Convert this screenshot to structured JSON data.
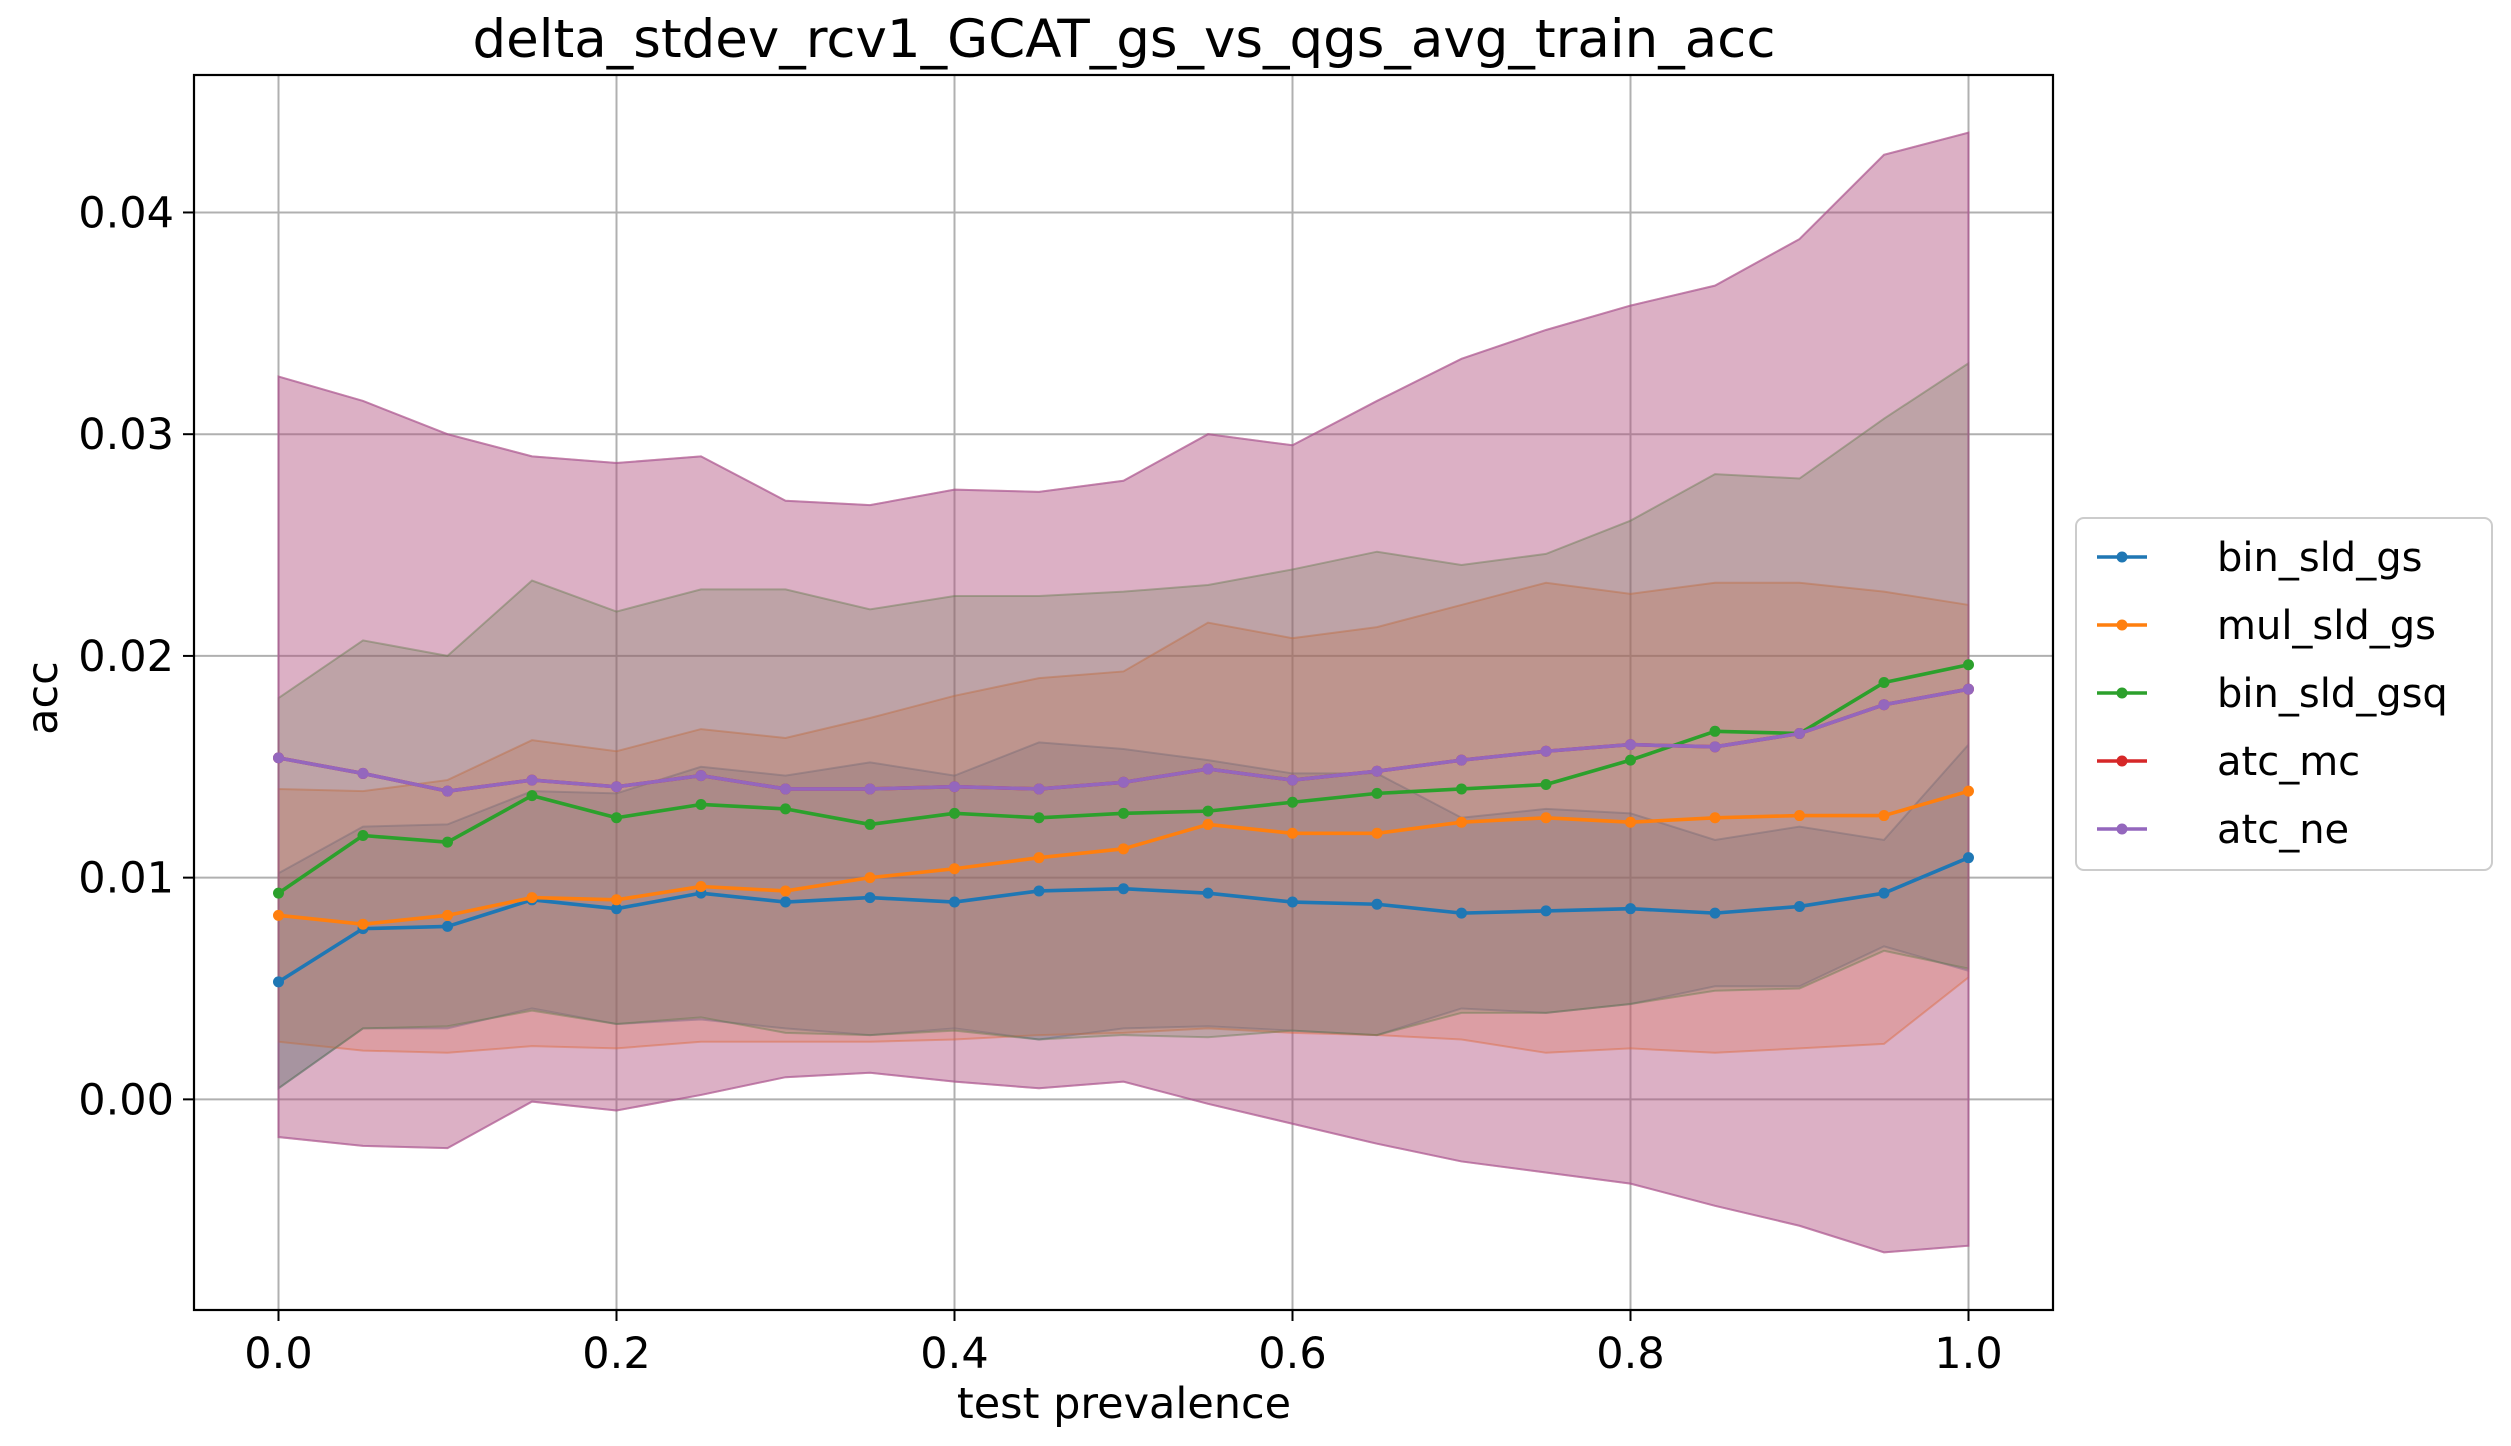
{
  "chart_data": {
    "type": "line",
    "title": "delta_stdev_rcv1_GCAT_gs_vs_qgs_avg_train_acc",
    "xlabel": "test prevalence",
    "ylabel": "acc",
    "xlim": [
      -0.05,
      1.05
    ],
    "ylim": [
      -0.0095,
      0.0462
    ],
    "x_ticks": [
      0.0,
      0.2,
      0.4,
      0.6,
      0.8,
      1.0
    ],
    "x_tick_labels": [
      "0.0",
      "0.2",
      "0.4",
      "0.6",
      "0.8",
      "1.0"
    ],
    "y_ticks": [
      0.0,
      0.01,
      0.02,
      0.03,
      0.04
    ],
    "y_tick_labels": [
      "0.00",
      "0.01",
      "0.02",
      "0.03",
      "0.04"
    ],
    "grid": true,
    "legend_position": "right",
    "x": [
      0.0,
      0.05,
      0.1,
      0.15,
      0.2,
      0.25,
      0.3,
      0.35,
      0.4,
      0.45,
      0.5,
      0.55,
      0.6,
      0.65,
      0.7,
      0.75,
      0.8,
      0.85,
      0.9,
      0.95,
      1.0
    ],
    "series": [
      {
        "name": "bin_sld_gs",
        "color": "#1f77b4",
        "values": [
          0.0053,
          0.0077,
          0.0078,
          0.009,
          0.0086,
          0.0093,
          0.0089,
          0.0091,
          0.0089,
          0.0094,
          0.0095,
          0.0093,
          0.0089,
          0.0088,
          0.0084,
          0.0085,
          0.0086,
          0.0084,
          0.0087,
          0.0093,
          0.0109
        ],
        "band_lower": [
          0.0005,
          0.0032,
          0.0032,
          0.0041,
          0.0034,
          0.0036,
          0.0032,
          0.0029,
          0.0032,
          0.0027,
          0.0032,
          0.0033,
          0.0031,
          0.0029,
          0.0041,
          0.0039,
          0.0043,
          0.0051,
          0.0051,
          0.0069,
          0.0058
        ],
        "band_upper": [
          0.0102,
          0.0123,
          0.0124,
          0.0139,
          0.0138,
          0.015,
          0.0146,
          0.0152,
          0.0146,
          0.0161,
          0.0158,
          0.0153,
          0.0147,
          0.0147,
          0.0127,
          0.0131,
          0.0129,
          0.0117,
          0.0123,
          0.0117,
          0.016
        ]
      },
      {
        "name": "mul_sld_gs",
        "color": "#ff7f0e",
        "values": [
          0.0083,
          0.0079,
          0.0083,
          0.0091,
          0.009,
          0.0096,
          0.0094,
          0.01,
          0.0104,
          0.0109,
          0.0113,
          0.0124,
          0.012,
          0.012,
          0.0125,
          0.0127,
          0.0125,
          0.0127,
          0.0128,
          0.0128,
          0.0139
        ],
        "band_lower": [
          0.0026,
          0.0022,
          0.0021,
          0.0024,
          0.0023,
          0.0026,
          0.0026,
          0.0026,
          0.0027,
          0.0029,
          0.003,
          0.0032,
          0.003,
          0.0029,
          0.0027,
          0.0021,
          0.0023,
          0.0021,
          0.0023,
          0.0025,
          0.0055
        ],
        "band_upper": [
          0.014,
          0.0139,
          0.0144,
          0.0162,
          0.0157,
          0.0167,
          0.0163,
          0.0172,
          0.0182,
          0.019,
          0.0193,
          0.0215,
          0.0208,
          0.0213,
          0.0223,
          0.0233,
          0.0228,
          0.0233,
          0.0233,
          0.0229,
          0.0223
        ]
      },
      {
        "name": "bin_sld_gsq",
        "color": "#2ca02c",
        "values": [
          0.0093,
          0.0119,
          0.0116,
          0.0137,
          0.0127,
          0.0133,
          0.0131,
          0.0124,
          0.0129,
          0.0127,
          0.0129,
          0.013,
          0.0134,
          0.0138,
          0.014,
          0.0142,
          0.0153,
          0.0166,
          0.0165,
          0.0188,
          0.0196
        ],
        "band_lower": [
          0.0005,
          0.0032,
          0.0033,
          0.004,
          0.0034,
          0.0037,
          0.003,
          0.0029,
          0.0031,
          0.0027,
          0.0029,
          0.0028,
          0.0031,
          0.0029,
          0.0039,
          0.0039,
          0.0043,
          0.0049,
          0.005,
          0.0067,
          0.0059
        ],
        "band_upper": [
          0.0181,
          0.0207,
          0.02,
          0.0234,
          0.022,
          0.023,
          0.023,
          0.0221,
          0.0227,
          0.0227,
          0.0229,
          0.0232,
          0.0239,
          0.0247,
          0.0241,
          0.0246,
          0.0261,
          0.0282,
          0.028,
          0.0307,
          0.0332
        ]
      },
      {
        "name": "atc_mc",
        "color": "#d62728",
        "values": [
          0.0154,
          0.0147,
          0.0139,
          0.0144,
          0.0141,
          0.0146,
          0.014,
          0.014,
          0.0141,
          0.014,
          0.0143,
          0.0149,
          0.0144,
          0.0148,
          0.0153,
          0.0157,
          0.016,
          0.0159,
          0.0165,
          0.0178,
          0.0185
        ],
        "band_lower": [
          -0.0017,
          -0.0021,
          -0.0022,
          -0.0001,
          -0.0005,
          0.0002,
          0.001,
          0.0012,
          0.0008,
          0.0005,
          0.0008,
          -0.0002,
          -0.0011,
          -0.002,
          -0.0028,
          -0.0033,
          -0.0038,
          -0.0048,
          -0.0057,
          -0.0069,
          -0.0066
        ],
        "band_upper": [
          0.0326,
          0.0315,
          0.03,
          0.029,
          0.0287,
          0.029,
          0.027,
          0.0268,
          0.0275,
          0.0274,
          0.0279,
          0.03,
          0.0295,
          0.0315,
          0.0334,
          0.0347,
          0.0358,
          0.0367,
          0.0388,
          0.0426,
          0.0436
        ]
      },
      {
        "name": "atc_ne",
        "color": "#9467bd",
        "values": [
          0.0154,
          0.0147,
          0.0139,
          0.0144,
          0.0141,
          0.0146,
          0.014,
          0.014,
          0.0141,
          0.014,
          0.0143,
          0.0149,
          0.0144,
          0.0148,
          0.0153,
          0.0157,
          0.016,
          0.0159,
          0.0165,
          0.0178,
          0.0185
        ],
        "band_lower": [
          -0.0017,
          -0.0021,
          -0.0022,
          -0.0001,
          -0.0005,
          0.0002,
          0.001,
          0.0012,
          0.0008,
          0.0005,
          0.0008,
          -0.0002,
          -0.0011,
          -0.002,
          -0.0028,
          -0.0033,
          -0.0038,
          -0.0048,
          -0.0057,
          -0.0069,
          -0.0066
        ],
        "band_upper": [
          0.0326,
          0.0315,
          0.03,
          0.029,
          0.0287,
          0.029,
          0.027,
          0.0268,
          0.0275,
          0.0274,
          0.0279,
          0.03,
          0.0295,
          0.0315,
          0.0334,
          0.0347,
          0.0358,
          0.0367,
          0.0388,
          0.0426,
          0.0436
        ]
      }
    ]
  }
}
